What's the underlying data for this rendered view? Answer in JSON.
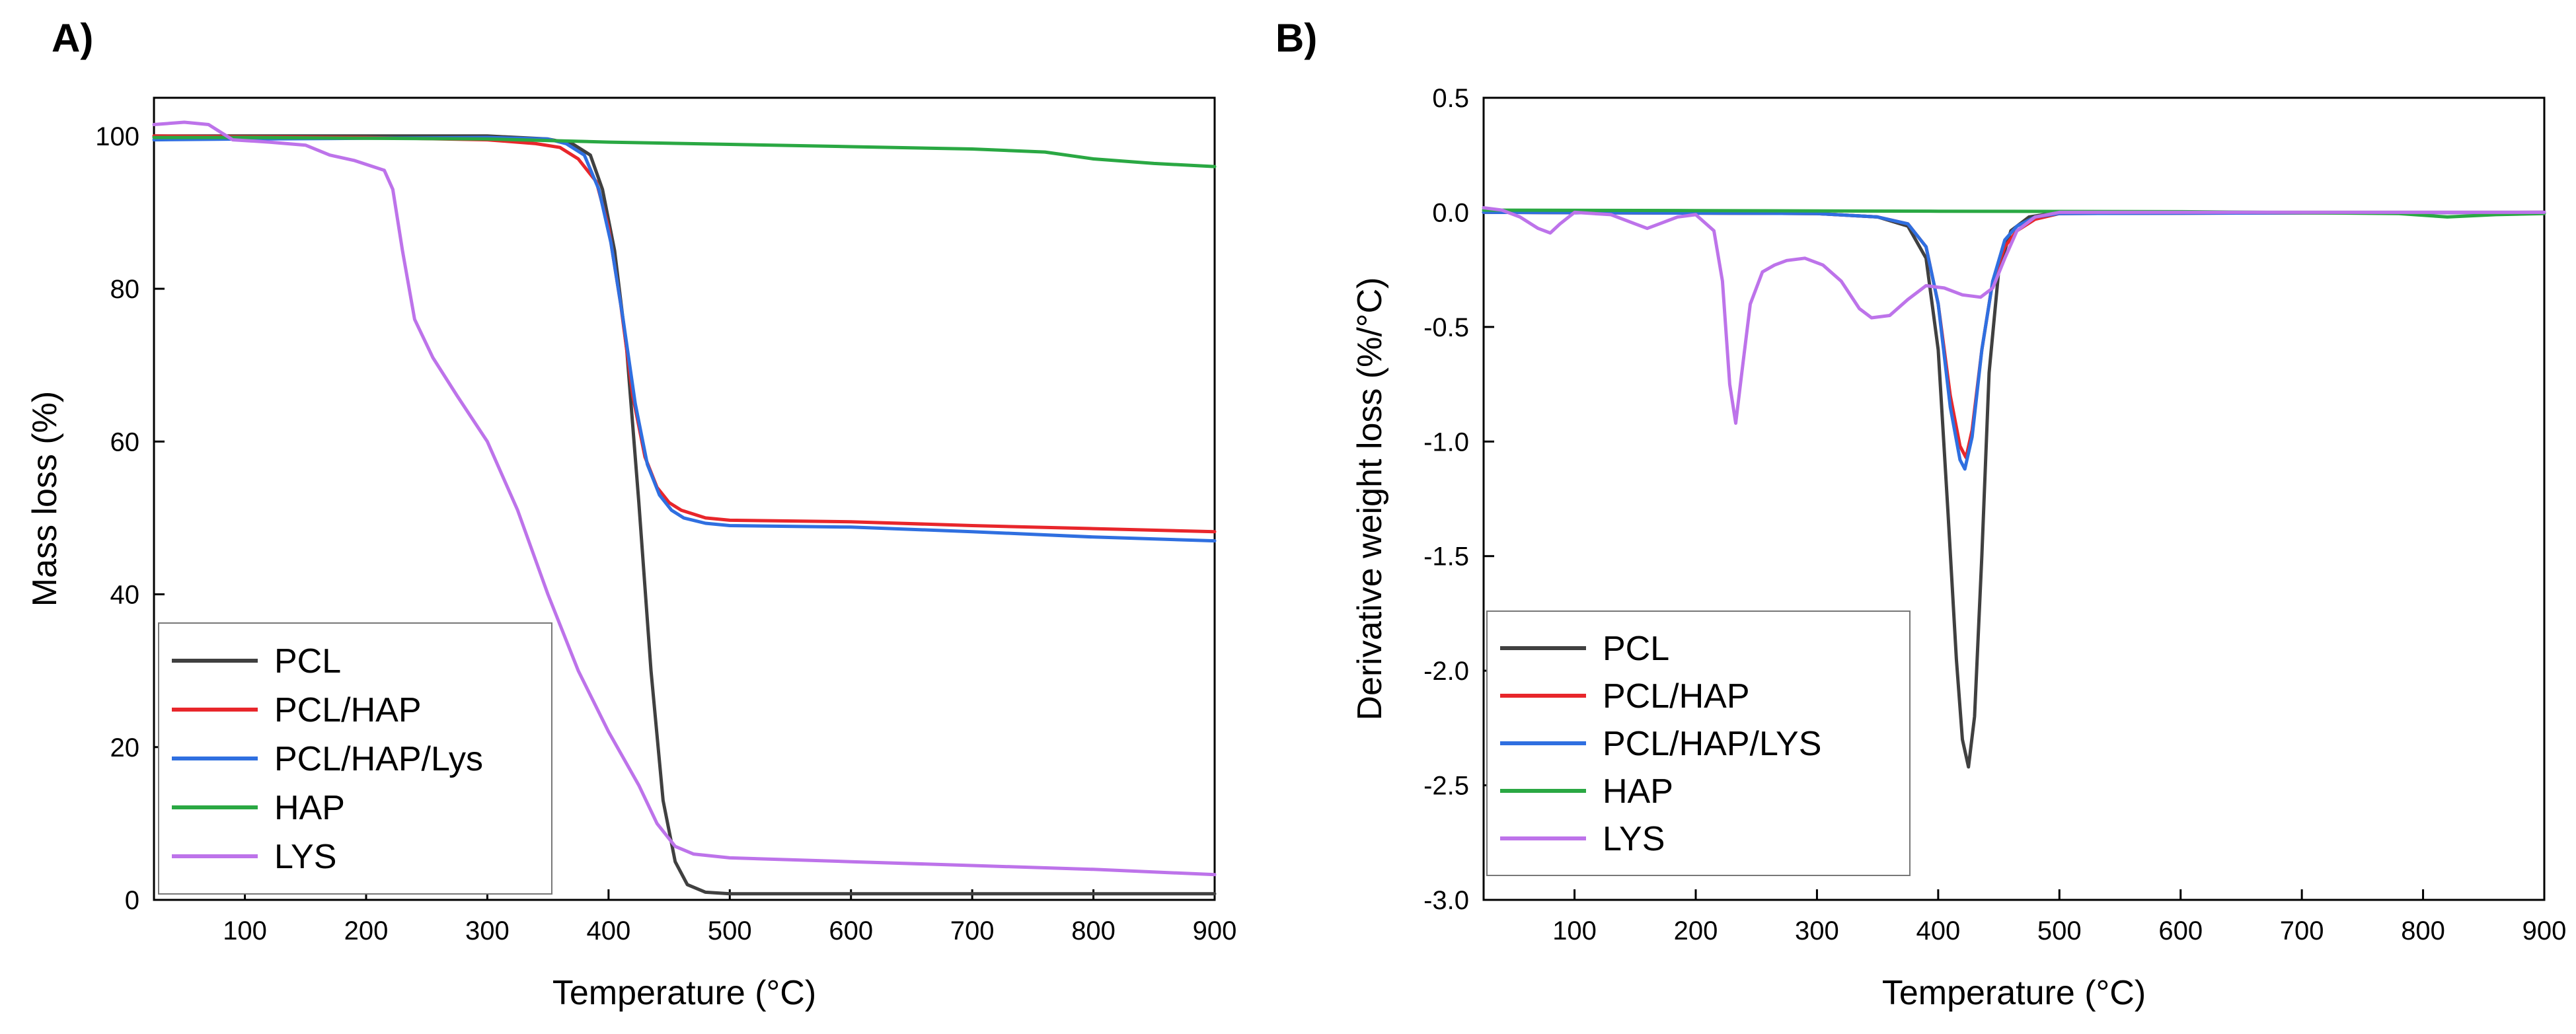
{
  "chart_data": [
    {
      "type": "line",
      "panel_label": "A)",
      "title": "",
      "xlabel": "Temperature (°C)",
      "ylabel": "Mass loss (%)",
      "xlim": [
        25,
        900
      ],
      "ylim": [
        0,
        105
      ],
      "xticks": [
        100,
        200,
        300,
        400,
        500,
        600,
        700,
        800,
        900
      ],
      "yticks": [
        0,
        20,
        40,
        60,
        80,
        100
      ],
      "legend_position": "bottom-left",
      "series": [
        {
          "name": "PCL",
          "color": "#404040",
          "x": [
            25,
            100,
            200,
            300,
            350,
            370,
            385,
            395,
            405,
            415,
            425,
            435,
            445,
            455,
            465,
            480,
            500,
            600,
            700,
            800,
            900
          ],
          "y": [
            100,
            100,
            100,
            100,
            99.6,
            99,
            97.5,
            93,
            85,
            72,
            52,
            30,
            13,
            5,
            2,
            1,
            0.8,
            0.8,
            0.8,
            0.8,
            0.8
          ]
        },
        {
          "name": "PCL/HAP",
          "color": "#e8262b",
          "x": [
            25,
            100,
            200,
            300,
            340,
            360,
            375,
            390,
            400,
            410,
            420,
            430,
            440,
            450,
            460,
            480,
            500,
            600,
            700,
            800,
            900
          ],
          "y": [
            100,
            99.9,
            99.8,
            99.5,
            99,
            98.5,
            97,
            94,
            88,
            78,
            66,
            58,
            54,
            52,
            51,
            50,
            49.7,
            49.5,
            49,
            48.6,
            48.2
          ]
        },
        {
          "name": "PCL/HAP/Lys",
          "color": "#2f6fe0",
          "x": [
            25,
            100,
            200,
            300,
            350,
            365,
            380,
            392,
            402,
            412,
            422,
            432,
            442,
            452,
            462,
            480,
            500,
            600,
            700,
            800,
            900
          ],
          "y": [
            99.5,
            99.6,
            99.7,
            99.8,
            99.6,
            99,
            97.5,
            93,
            86,
            76,
            65,
            57,
            53,
            51,
            50,
            49.3,
            49,
            48.8,
            48.2,
            47.5,
            47
          ]
        },
        {
          "name": "HAP",
          "color": "#2aa843",
          "x": [
            25,
            100,
            200,
            300,
            400,
            500,
            600,
            700,
            760,
            800,
            850,
            900
          ],
          "y": [
            99.8,
            99.8,
            99.7,
            99.6,
            99.2,
            98.9,
            98.6,
            98.3,
            97.9,
            97,
            96.4,
            96
          ]
        },
        {
          "name": "LYS",
          "color": "#bd73ea",
          "x": [
            25,
            50,
            70,
            90,
            120,
            150,
            170,
            190,
            215,
            222,
            230,
            240,
            255,
            275,
            300,
            325,
            350,
            375,
            400,
            425,
            440,
            455,
            470,
            500,
            600,
            700,
            800,
            900
          ],
          "y": [
            101.5,
            101.8,
            101.5,
            99.5,
            99.2,
            98.8,
            97.5,
            96.8,
            95.5,
            93,
            85,
            76,
            71,
            66,
            60,
            51,
            40,
            30,
            22,
            15,
            10,
            7,
            6,
            5.5,
            5,
            4.5,
            4,
            3.3
          ]
        }
      ]
    },
    {
      "type": "line",
      "panel_label": "B)",
      "title": "",
      "xlabel": "Temperature (°C)",
      "ylabel": "Derivative weight loss (%/°C)",
      "xlim": [
        25,
        900
      ],
      "ylim": [
        -3.0,
        0.5
      ],
      "xticks": [
        100,
        200,
        300,
        400,
        500,
        600,
        700,
        800,
        900
      ],
      "yticks": [
        -3.0,
        -2.5,
        -2.0,
        -1.5,
        -1.0,
        -0.5,
        0.0,
        0.5
      ],
      "ytick_labels": [
        "-3.0",
        "-2.5",
        "-2.0",
        "-1.5",
        "-1.0",
        "-0.5",
        "0.0",
        "0.5"
      ],
      "legend_position": "bottom-left",
      "series": [
        {
          "name": "PCL",
          "color": "#404040",
          "x": [
            25,
            300,
            350,
            375,
            390,
            400,
            408,
            415,
            420,
            425,
            430,
            436,
            442,
            450,
            460,
            475,
            500,
            600,
            900
          ],
          "y": [
            0,
            -0.005,
            -0.02,
            -0.06,
            -0.2,
            -0.6,
            -1.3,
            -1.95,
            -2.3,
            -2.42,
            -2.2,
            -1.5,
            -0.7,
            -0.25,
            -0.08,
            -0.02,
            0,
            0,
            0
          ]
        },
        {
          "name": "PCL/HAP",
          "color": "#e8262b",
          "x": [
            25,
            300,
            350,
            375,
            390,
            400,
            410,
            418,
            423,
            428,
            436,
            445,
            455,
            465,
            480,
            500,
            900
          ],
          "y": [
            0,
            -0.005,
            -0.02,
            -0.05,
            -0.15,
            -0.4,
            -0.8,
            -1.02,
            -1.07,
            -0.95,
            -0.6,
            -0.3,
            -0.15,
            -0.08,
            -0.03,
            -0.005,
            0
          ]
        },
        {
          "name": "PCL/HAP/LYS",
          "color": "#2f6fe0",
          "x": [
            25,
            300,
            350,
            375,
            390,
            400,
            410,
            418,
            422,
            428,
            436,
            445,
            455,
            465,
            480,
            500,
            900
          ],
          "y": [
            0,
            -0.005,
            -0.02,
            -0.05,
            -0.15,
            -0.4,
            -0.85,
            -1.08,
            -1.12,
            -0.98,
            -0.6,
            -0.3,
            -0.12,
            -0.06,
            -0.02,
            -0.005,
            0
          ]
        },
        {
          "name": "HAP",
          "color": "#2aa843",
          "x": [
            25,
            200,
            400,
            600,
            780,
            820,
            860,
            900
          ],
          "y": [
            0.01,
            0.008,
            0.005,
            0.003,
            -0.005,
            -0.02,
            -0.01,
            -0.005
          ]
        },
        {
          "name": "LYS",
          "color": "#bd73ea",
          "x": [
            25,
            40,
            55,
            70,
            80,
            88,
            100,
            130,
            150,
            160,
            170,
            185,
            200,
            215,
            222,
            228,
            233,
            238,
            245,
            255,
            265,
            275,
            290,
            305,
            320,
            335,
            345,
            360,
            375,
            390,
            405,
            420,
            435,
            445,
            455,
            465,
            480,
            500,
            600,
            900
          ],
          "y": [
            0.02,
            0.01,
            -0.02,
            -0.07,
            -0.09,
            -0.05,
            0,
            -0.01,
            -0.05,
            -0.07,
            -0.05,
            -0.02,
            -0.01,
            -0.08,
            -0.3,
            -0.75,
            -0.92,
            -0.7,
            -0.4,
            -0.26,
            -0.23,
            -0.21,
            -0.2,
            -0.23,
            -0.3,
            -0.42,
            -0.46,
            -0.45,
            -0.38,
            -0.32,
            -0.33,
            -0.36,
            -0.37,
            -0.33,
            -0.2,
            -0.08,
            -0.02,
            0,
            0,
            0
          ]
        }
      ]
    }
  ]
}
